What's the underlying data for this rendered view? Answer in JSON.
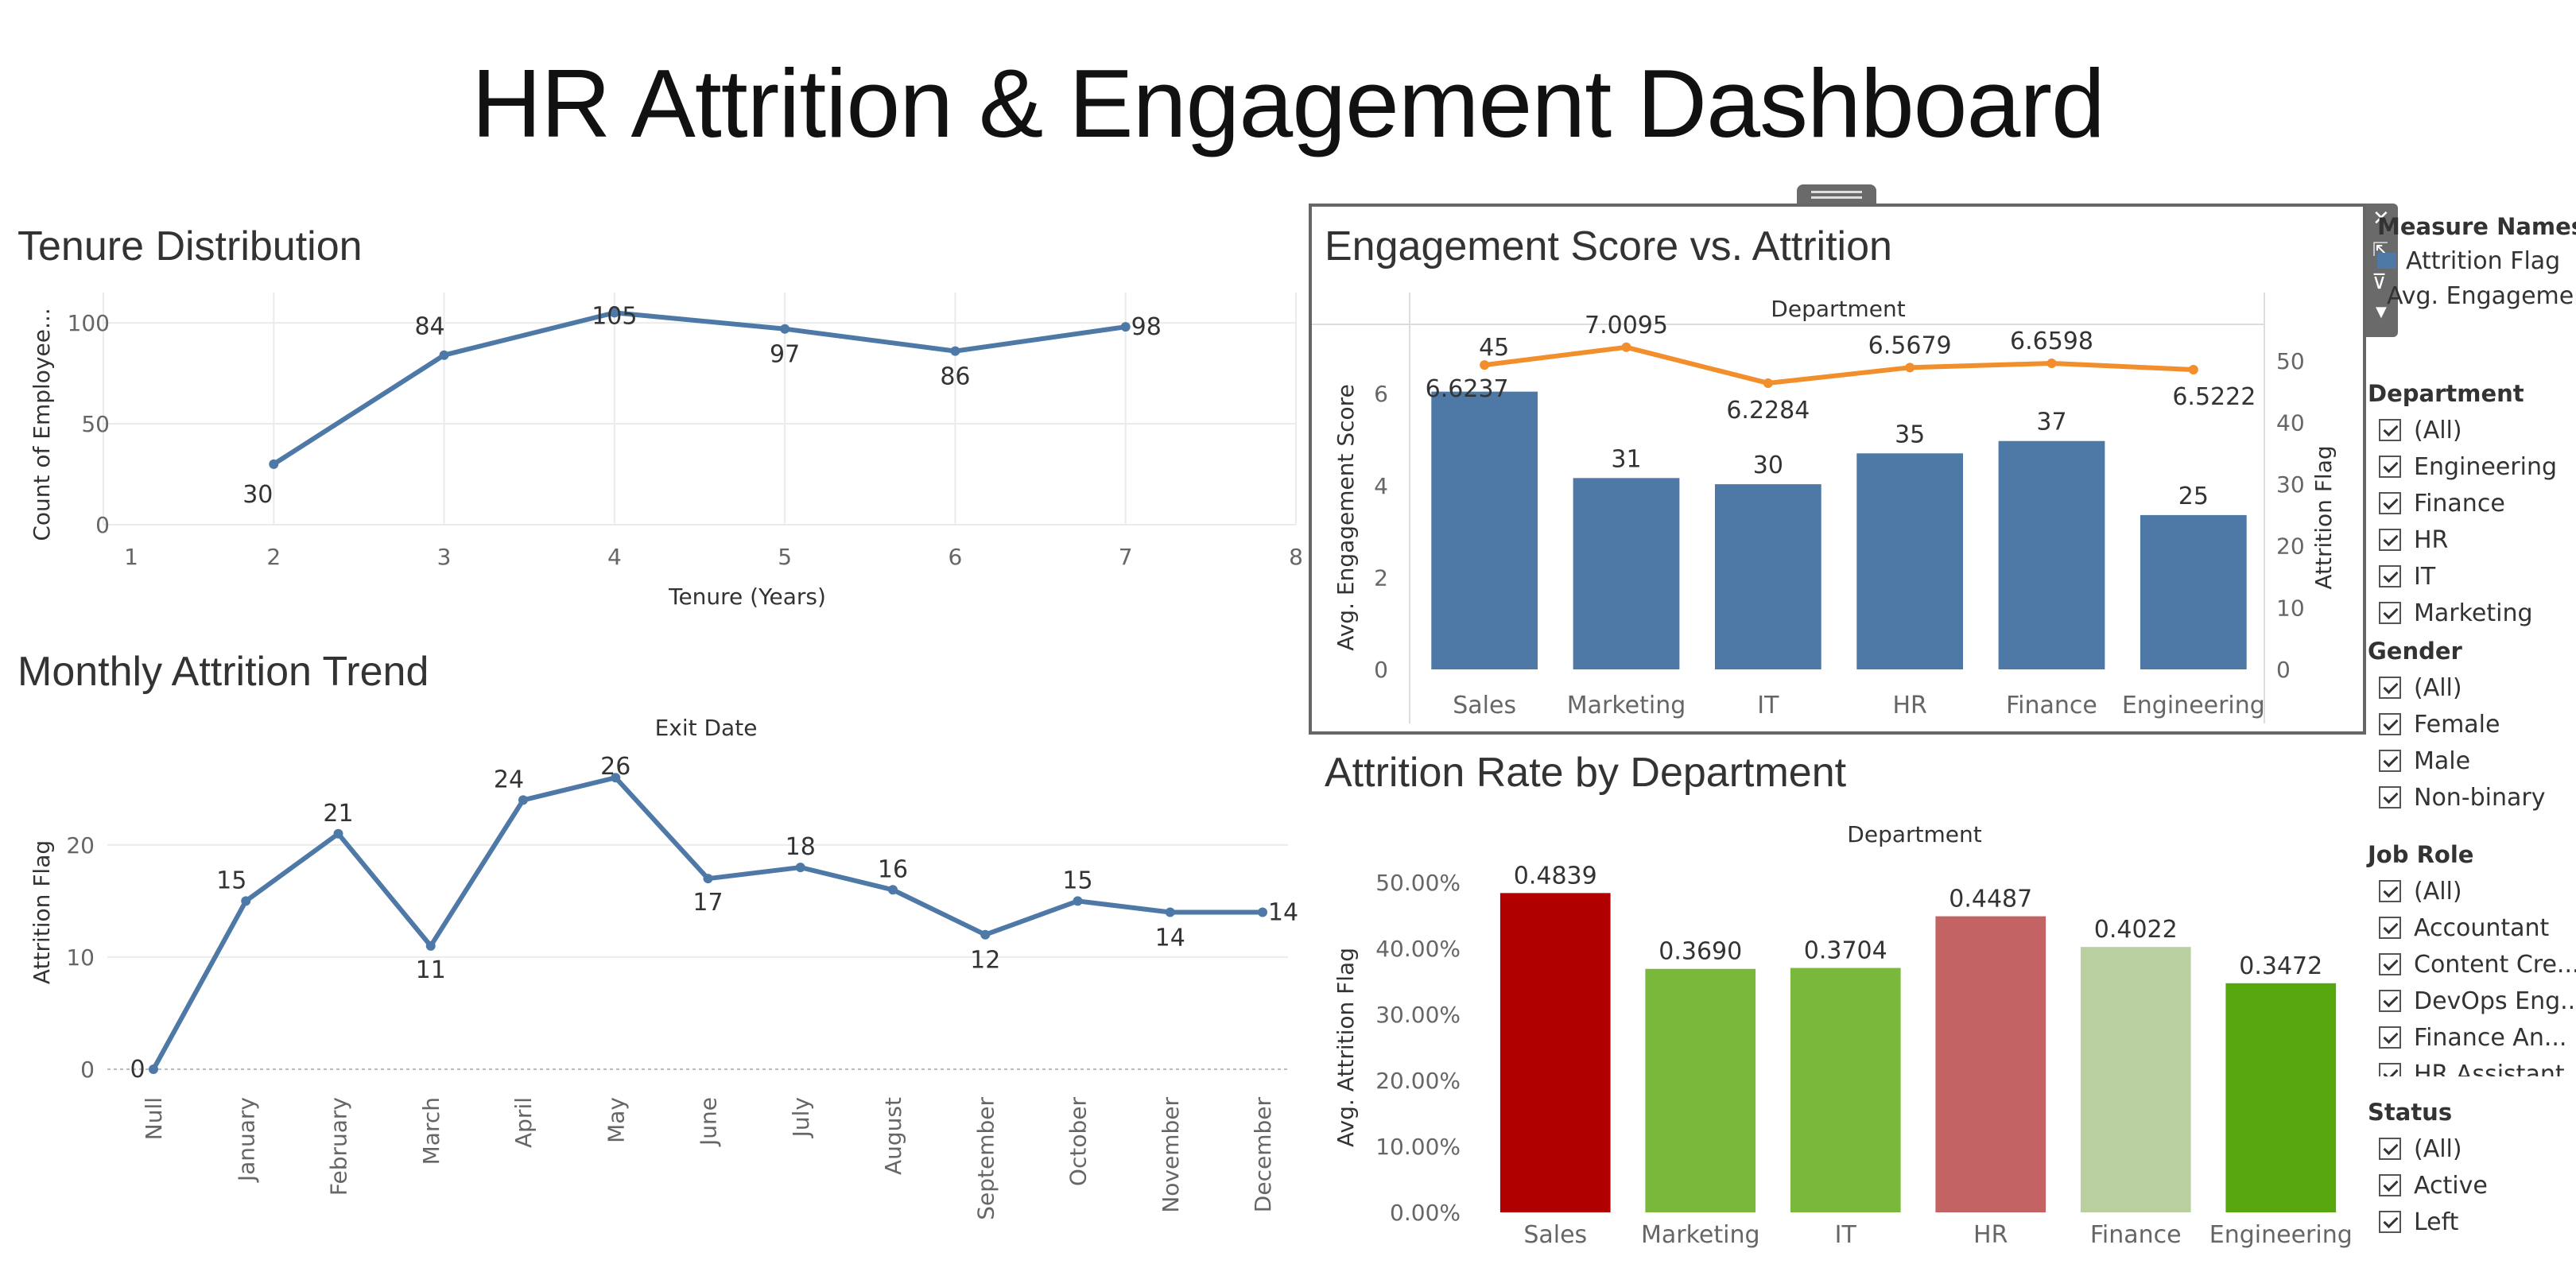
{
  "dashboard": {
    "title": "HR Attrition & Engagement Dashboard"
  },
  "panels": {
    "tenure_title": "Tenure Distribution",
    "monthly_title": "Monthly Attrition Trend",
    "engagement_title": "Engagement Score vs. Attrition",
    "rate_title": "Attrition Rate by Department"
  },
  "legend": {
    "title": "Measure Names",
    "items": [
      "Attrition Flag",
      "Avg. Engagement Score"
    ]
  },
  "filters": [
    {
      "title": "Department",
      "items": [
        "(All)",
        "Engineering",
        "Finance",
        "HR",
        "IT",
        "Marketing"
      ]
    },
    {
      "title": "Gender",
      "items": [
        "(All)",
        "Female",
        "Male",
        "Non-binary"
      ]
    },
    {
      "title": "Job Role",
      "items": [
        "(All)",
        "Accountant",
        "Content Cre...",
        "DevOps Eng...",
        "Finance An...",
        "HR Assistant"
      ]
    },
    {
      "title": "Status",
      "items": [
        "(All)",
        "Active",
        "Left"
      ]
    }
  ],
  "colors": {
    "blue": "#4e79a7",
    "orange": "#f28e2b",
    "grid": "#ebebeb",
    "rate_bars": [
      "#b00000",
      "#7ab83c",
      "#7ab83c",
      "#c46364",
      "#b9cfa0",
      "#57a80f"
    ]
  },
  "chart_data": [
    {
      "id": "tenure",
      "type": "line",
      "x": [
        2,
        3,
        4,
        5,
        6,
        7
      ],
      "values": [
        30,
        84,
        105,
        97,
        86,
        98
      ],
      "labels": [
        "30",
        "84",
        "105",
        "97",
        "86",
        "98"
      ],
      "xlabel": "Tenure (Years)",
      "ylabel": "Count of Employee...",
      "xlim": [
        1,
        8
      ],
      "ylim": [
        0,
        115
      ],
      "x_ticks": [
        "1",
        "2",
        "3",
        "4",
        "5",
        "6",
        "7",
        "8"
      ],
      "y_ticks": [
        "0",
        "50",
        "100"
      ],
      "grid": true
    },
    {
      "id": "monthly",
      "type": "line",
      "header": "Exit Date",
      "categories": [
        "Null",
        "January",
        "February",
        "March",
        "April",
        "May",
        "June",
        "July",
        "August",
        "September",
        "October",
        "November",
        "December"
      ],
      "values": [
        0,
        15,
        21,
        11,
        24,
        26,
        17,
        18,
        16,
        12,
        15,
        14,
        14
      ],
      "labels": [
        "0",
        "15",
        "21",
        "11",
        "24",
        "26",
        "17",
        "18",
        "16",
        "12",
        "15",
        "14",
        "14"
      ],
      "ylabel": "Attrition Flag",
      "ylim": [
        0,
        28
      ],
      "y_ticks": [
        "0",
        "10",
        "20"
      ],
      "grid": true
    },
    {
      "id": "engagement",
      "type": "bar",
      "header": "Department",
      "categories": [
        "Sales",
        "Marketing",
        "IT",
        "HR",
        "Finance",
        "Engineering"
      ],
      "series": [
        {
          "name": "Attrition Flag",
          "type": "bar",
          "axis": "right",
          "values": [
            45,
            31,
            30,
            35,
            37,
            25
          ],
          "labels": [
            "45",
            "31",
            "30",
            "35",
            "37",
            "25"
          ]
        },
        {
          "name": "Avg. Engagement Score",
          "type": "line",
          "axis": "left",
          "values": [
            6.6237,
            7.0095,
            6.2284,
            6.5679,
            6.6598,
            6.5222
          ],
          "labels": [
            "6.6237",
            "7.0095",
            "6.2284",
            "6.5679",
            "6.6598",
            "6.5222"
          ]
        }
      ],
      "ylabel": "Avg. Engagement Score",
      "y2label": "Attrition Flag",
      "ylim": [
        0,
        7.3
      ],
      "y2lim": [
        0,
        55
      ],
      "y_ticks": [
        "0",
        "2",
        "4",
        "6"
      ],
      "y2_ticks": [
        "0",
        "10",
        "20",
        "30",
        "40",
        "50"
      ]
    },
    {
      "id": "rate",
      "type": "bar",
      "header": "Department",
      "categories": [
        "Sales",
        "Marketing",
        "IT",
        "HR",
        "Finance",
        "Engineering"
      ],
      "values": [
        0.4839,
        0.369,
        0.3704,
        0.4487,
        0.4022,
        0.3472
      ],
      "labels": [
        "0.4839",
        "0.3690",
        "0.3704",
        "0.4487",
        "0.4022",
        "0.3472"
      ],
      "ylabel": "Avg. Attrition Flag",
      "ylim": [
        0,
        0.5
      ],
      "y_ticks": [
        "0.00%",
        "10.00%",
        "20.00%",
        "30.00%",
        "40.00%",
        "50.00%"
      ]
    }
  ]
}
